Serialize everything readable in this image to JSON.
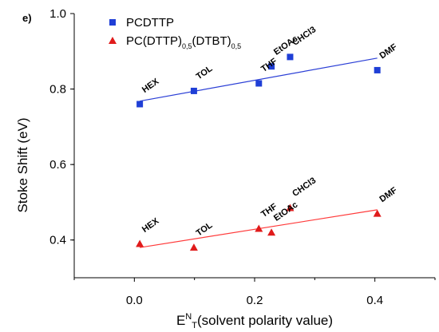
{
  "chart_data": {
    "type": "scatter",
    "panel_label": "e)",
    "xlabel": {
      "main": "E",
      "sup": "N",
      "sub": "T",
      "rest": "(solvent polarity value)"
    },
    "ylabel": "Stoke Shift (eV)",
    "xlim": [
      -0.1,
      0.5
    ],
    "ylim": [
      0.3,
      1.0
    ],
    "x_ticks": [
      "0.0",
      "0.2",
      "0.4"
    ],
    "y_ticks": [
      "0.4",
      "0.6",
      "0.8",
      "1.0"
    ],
    "grid": false,
    "legend_position": "top-left",
    "series": [
      {
        "name": "PCDTTP",
        "marker": "square",
        "color": "#1f3fd6",
        "line_color": "#2b3fd6",
        "x": [
          0.009,
          0.099,
          0.207,
          0.228,
          0.259,
          0.404
        ],
        "y": [
          0.76,
          0.795,
          0.815,
          0.86,
          0.885,
          0.85
        ],
        "labels": [
          "HEX",
          "TOL",
          "THF",
          "EtOAc",
          "CHCl3",
          "DMF"
        ],
        "fit": {
          "x": [
            0.009,
            0.404
          ],
          "y": [
            0.768,
            0.882
          ]
        }
      },
      {
        "name": "PC(DTTP)0.5(DTBT)0.5",
        "name_parts": {
          "a": "PC(DTTP)",
          "s1": "0,5",
          "b": "(DTBT)",
          "s2": "0,5"
        },
        "marker": "triangle",
        "color": "#e01b1b",
        "line_color": "#ff3a3a",
        "x": [
          0.009,
          0.099,
          0.207,
          0.228,
          0.259,
          0.404
        ],
        "y": [
          0.39,
          0.38,
          0.43,
          0.42,
          0.485,
          0.47
        ],
        "labels": [
          "HEX",
          "TOL",
          "THF",
          "EtOAc",
          "CHCl3",
          "DMF"
        ],
        "fit": {
          "x": [
            0.009,
            0.404
          ],
          "y": [
            0.38,
            0.48
          ]
        }
      }
    ]
  }
}
